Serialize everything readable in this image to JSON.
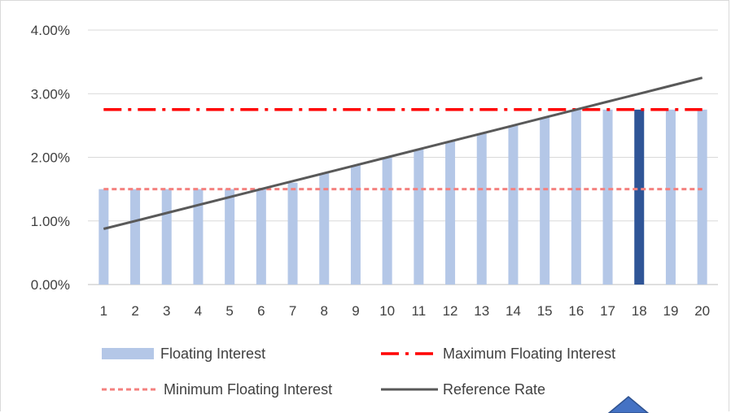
{
  "chart_data": {
    "type": "bar",
    "categories": [
      "1",
      "2",
      "3",
      "4",
      "5",
      "6",
      "7",
      "8",
      "9",
      "10",
      "11",
      "12",
      "13",
      "14",
      "15",
      "16",
      "17",
      "18",
      "19",
      "20"
    ],
    "ylim": [
      0,
      0.04
    ],
    "yticks": [
      "0.00%",
      "1.00%",
      "2.00%",
      "3.00%",
      "4.00%"
    ],
    "grid": true,
    "legend_position": "bottom",
    "highlight_index": 17,
    "series": [
      {
        "name": "Floating Interest",
        "kind": "bar",
        "color": "#b4c7e7",
        "highlight_color": "#2f5597",
        "values": [
          0.015,
          0.015,
          0.015,
          0.015,
          0.015,
          0.015,
          0.016,
          0.0175,
          0.01875,
          0.02,
          0.02125,
          0.0225,
          0.02375,
          0.025,
          0.02625,
          0.0275,
          0.0275,
          0.0275,
          0.0275,
          0.0275
        ]
      },
      {
        "name": "Maximum Floating Interest",
        "kind": "line",
        "style": "dash-dot",
        "color": "#ff0000",
        "values": [
          0.0275,
          0.0275,
          0.0275,
          0.0275,
          0.0275,
          0.0275,
          0.0275,
          0.0275,
          0.0275,
          0.0275,
          0.0275,
          0.0275,
          0.0275,
          0.0275,
          0.0275,
          0.0275,
          0.0275,
          0.0275,
          0.0275,
          0.0275
        ]
      },
      {
        "name": "Minimum Floating Interest",
        "kind": "line",
        "style": "dash",
        "color": "#f4817f",
        "values": [
          0.015,
          0.015,
          0.015,
          0.015,
          0.015,
          0.015,
          0.015,
          0.015,
          0.015,
          0.015,
          0.015,
          0.015,
          0.015,
          0.015,
          0.015,
          0.015,
          0.015,
          0.015,
          0.015,
          0.015
        ]
      },
      {
        "name": "Reference Rate",
        "kind": "line",
        "style": "solid",
        "color": "#595959",
        "values": [
          0.00875,
          0.01,
          0.01125,
          0.0125,
          0.01375,
          0.015,
          0.01625,
          0.0175,
          0.01875,
          0.02,
          0.02125,
          0.0225,
          0.02375,
          0.025,
          0.02625,
          0.0275,
          0.02875,
          0.03,
          0.03125,
          0.0325
        ]
      }
    ]
  },
  "decor": {
    "shape_icon": "blue-diamond-shape"
  }
}
